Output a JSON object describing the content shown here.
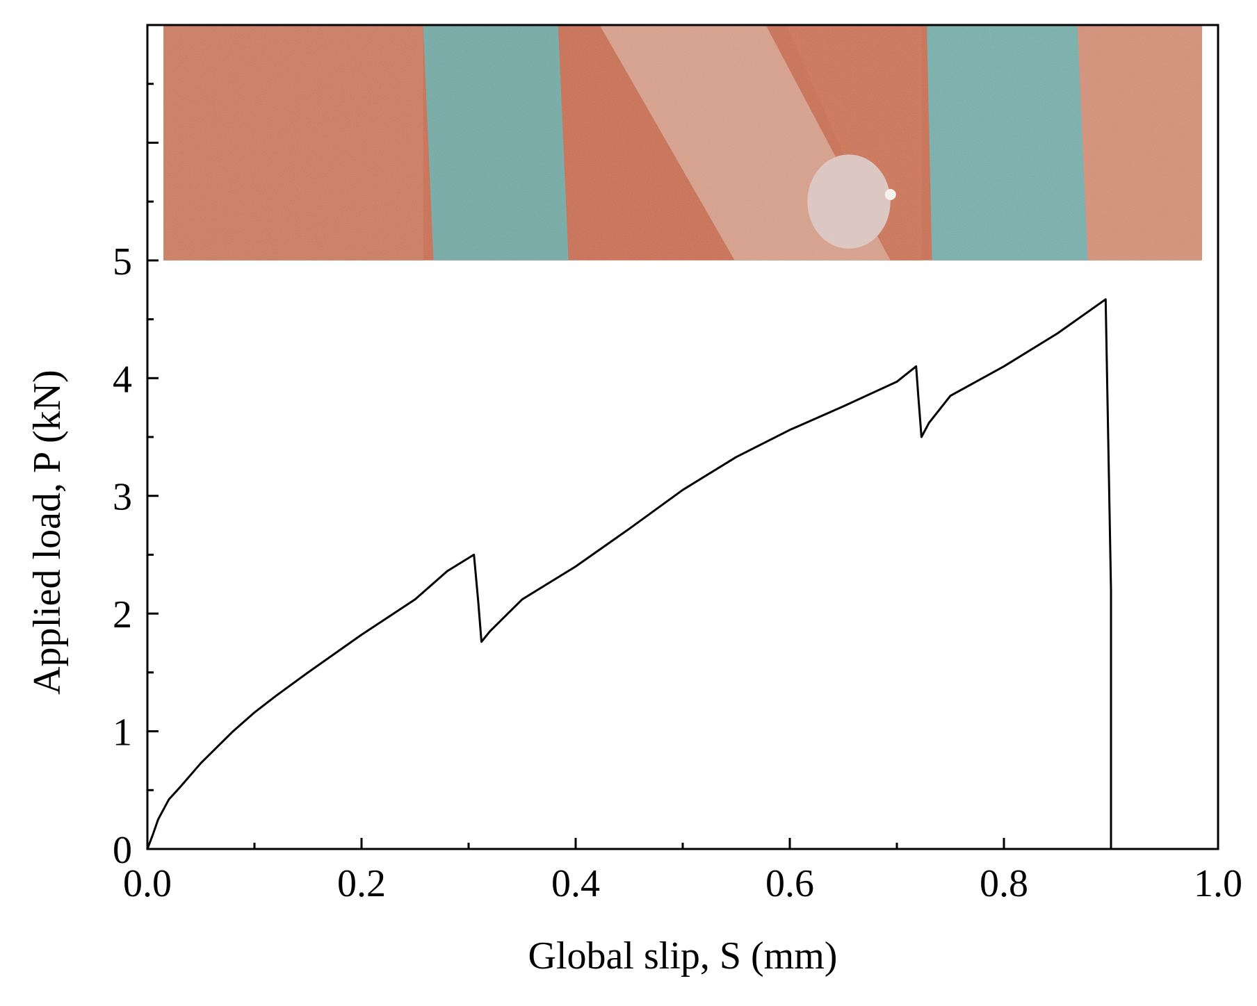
{
  "chart_data": {
    "type": "line",
    "xlabel": "Global slip, S (mm)",
    "ylabel": "Applied load, P (kN)",
    "xlim": [
      0,
      1.0
    ],
    "ylim": [
      0,
      7.0
    ],
    "x_ticks": [
      0.0,
      0.2,
      0.4,
      0.6,
      0.8,
      1.0
    ],
    "x_tick_labels": [
      "0.0",
      "0.2",
      "0.4",
      "0.6",
      "0.8",
      "1.0"
    ],
    "x_minor_ticks": [
      0.1,
      0.3,
      0.5,
      0.7,
      0.9
    ],
    "y_ticks": [
      0,
      1,
      2,
      3,
      4,
      5
    ],
    "y_tick_labels": [
      "0",
      "1",
      "2",
      "3",
      "4",
      "5"
    ],
    "y_minor_ticks": [
      0.5,
      1.5,
      2.5,
      3.5,
      4.5,
      5.5,
      6.5
    ],
    "grid": false,
    "legend": "none",
    "inset_photo": {
      "description_icon": "masonry-specimen-photo",
      "x_range": [
        0.015,
        0.985
      ],
      "y_range": [
        5.0,
        7.0
      ]
    },
    "series": [
      {
        "color": "#000000",
        "x": [
          0.0,
          0.005,
          0.01,
          0.02,
          0.03,
          0.05,
          0.08,
          0.1,
          0.12,
          0.15,
          0.2,
          0.25,
          0.28,
          0.305,
          0.309,
          0.312,
          0.32,
          0.33,
          0.35,
          0.4,
          0.45,
          0.5,
          0.55,
          0.6,
          0.65,
          0.7,
          0.718,
          0.72,
          0.723,
          0.73,
          0.75,
          0.8,
          0.85,
          0.895,
          0.9,
          0.9
        ],
        "y": [
          0.0,
          0.12,
          0.25,
          0.42,
          0.52,
          0.73,
          1.0,
          1.16,
          1.3,
          1.5,
          1.82,
          2.12,
          2.36,
          2.5,
          2.1,
          1.76,
          1.85,
          1.94,
          2.12,
          2.4,
          2.72,
          3.05,
          3.33,
          3.56,
          3.76,
          3.97,
          4.1,
          3.85,
          3.5,
          3.62,
          3.85,
          4.1,
          4.38,
          4.67,
          2.2,
          0.0
        ]
      }
    ]
  }
}
